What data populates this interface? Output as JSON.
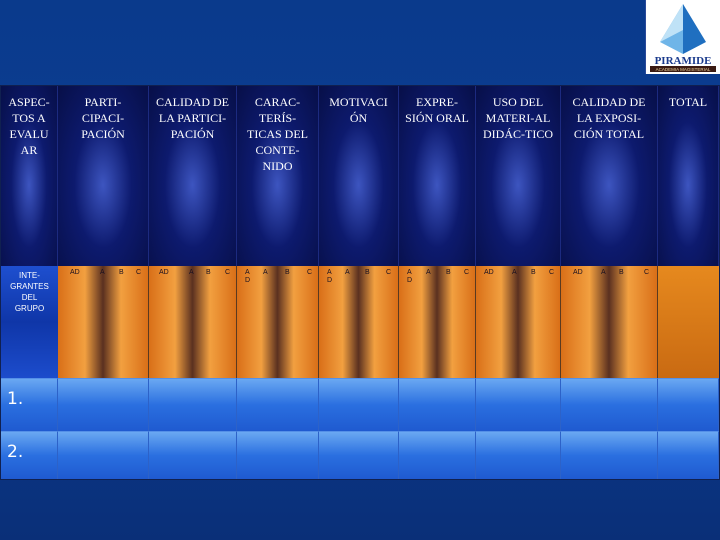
{
  "logo": {
    "brand": "PIRAMIDE",
    "tagline": "ACADEMIA MAGISTERIAL"
  },
  "header_columns": [
    "ASPEC-\nTOS A\nEVALU\nAR",
    "PARTI-\nCIPACI-\nPACIÓN",
    "CALIDAD DE\nLA PARTICI-\nPACIÓN",
    "CARAC-\nTERÍS-\nTICAS DEL\nCONTE-\nNIDO",
    "MOTIVACI\nÓN",
    "EXPRE-\nSIÓN ORAL",
    "USO DEL\nMATERI-AL\nDIDÁC-TICO",
    "CALIDAD DE\nLA EXPOSI-\nCIÓN TOTAL",
    "TOTAL"
  ],
  "row_header": "INTE-\nGRANTES\nDEL\nGRUPO",
  "sub_labels": {
    "participacion": [
      "AD",
      "A",
      "B",
      "C"
    ],
    "calidad_participacion": [
      "AD",
      "A",
      "B",
      "C"
    ],
    "caracteristicas": [
      "A\nD",
      "A",
      "B",
      "C"
    ],
    "motivacion": [
      "A\nD",
      "A",
      "B",
      "C"
    ],
    "expresion": [
      "A\nD",
      "A",
      "B",
      "C"
    ],
    "uso_material": [
      "AD",
      "A",
      "B",
      "C"
    ],
    "calidad_exposicion": [
      "AD",
      "A",
      "B",
      "C"
    ]
  },
  "rows": [
    "1.",
    "2."
  ]
}
